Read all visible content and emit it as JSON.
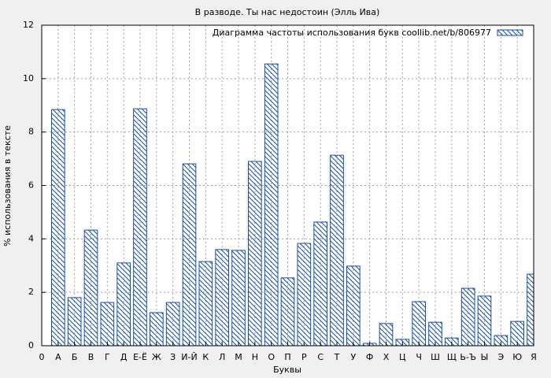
{
  "chart_data": {
    "type": "bar",
    "title": "В разводе. Ты нас недостоин (Элль Ива)",
    "xlabel": "Буквы",
    "ylabel": "% использования в тексте",
    "categories": [
      "0",
      "А",
      "Б",
      "В",
      "Г",
      "Д",
      "Е-Ё",
      "Ж",
      "З",
      "И-Й",
      "К",
      "Л",
      "М",
      "Н",
      "О",
      "П",
      "Р",
      "С",
      "Т",
      "У",
      "Ф",
      "Х",
      "Ц",
      "Ч",
      "Ш",
      "Щ",
      "Ь-Ъ",
      "Ы",
      "Э",
      "Ю",
      "Я"
    ],
    "series": [
      {
        "name": "Диаграмма частоты использования букв coollib.net/b/806977",
        "color": "#1a4fa0",
        "values": [
          null,
          8.84,
          1.8,
          4.33,
          1.62,
          3.1,
          8.87,
          1.24,
          1.62,
          6.81,
          3.15,
          3.6,
          3.57,
          6.9,
          10.55,
          2.54,
          3.83,
          4.63,
          7.13,
          2.98,
          0.09,
          0.83,
          0.24,
          1.65,
          0.88,
          0.29,
          2.15,
          1.86,
          0.38,
          0.91,
          2.68
        ]
      }
    ],
    "ylim": [
      0,
      12
    ],
    "yticks": [
      0,
      2,
      4,
      6,
      8,
      10,
      12
    ],
    "grid": true,
    "legend": "top-right"
  }
}
